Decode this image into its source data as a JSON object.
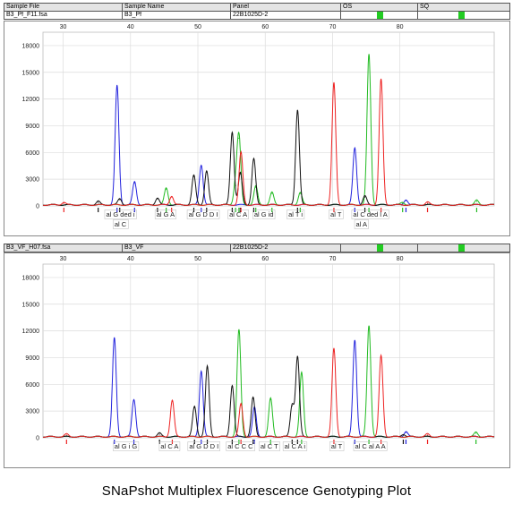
{
  "panels": [
    {
      "headers": [
        "Sample File",
        "Sample Name",
        "Panel",
        "OS",
        "SQ"
      ],
      "sample_file": "B3_Pf_F11.fsa",
      "sample_name": "B3_Pf",
      "panel": "22B1025D-2",
      "os_status": "pass",
      "sq_status": "pass",
      "allele_labels": [
        {
          "x": 38.5,
          "row": 1,
          "text": "al G ded i"
        },
        {
          "x": 38.5,
          "row": 2,
          "text": "al C"
        },
        {
          "x": 45.2,
          "row": 1,
          "text": "al G A"
        },
        {
          "x": 50.8,
          "row": 1,
          "text": "al G D D I"
        },
        {
          "x": 56.0,
          "row": 1,
          "text": "al C A"
        },
        {
          "x": 59.8,
          "row": 1,
          "text": "al G id"
        },
        {
          "x": 64.5,
          "row": 1,
          "text": "al T i"
        },
        {
          "x": 70.5,
          "row": 1,
          "text": "al T"
        },
        {
          "x": 75.6,
          "row": 1,
          "text": "al C ded l A"
        },
        {
          "x": 74.3,
          "row": 2,
          "text": "al A"
        }
      ]
    },
    {
      "headers": [
        "Sample File",
        "Sample Name",
        "Panel",
        "OS",
        "SQ"
      ],
      "sample_file": "B3_VF_H07.fsa",
      "sample_name": "B3_VF",
      "panel": "22B1025D-2",
      "os_status": "pass",
      "sq_status": "pass",
      "allele_labels": [
        {
          "x": 39.3,
          "row": 1,
          "text": "al G i G"
        },
        {
          "x": 45.8,
          "row": 1,
          "text": "al C A"
        },
        {
          "x": 50.9,
          "row": 1,
          "text": "al G D D I"
        },
        {
          "x": 56.3,
          "row": 1,
          "text": "al C C C"
        },
        {
          "x": 60.6,
          "row": 1,
          "text": "al C T"
        },
        {
          "x": 64.4,
          "row": 1,
          "text": "al C A i"
        },
        {
          "x": 70.6,
          "row": 1,
          "text": "al T"
        },
        {
          "x": 75.6,
          "row": 1,
          "text": "al C al A A"
        }
      ]
    }
  ],
  "caption": "SNaPshot Multiplex Fluorescence Genotyping Plot",
  "colors": {
    "blue": "#2222dd",
    "green": "#22bb22",
    "black": "#111111",
    "red": "#ee2222"
  },
  "chart_data": [
    {
      "type": "line",
      "xlim": [
        27,
        94
      ],
      "ylim": [
        0,
        19500
      ],
      "x_ticks": [
        30,
        40,
        50,
        60,
        70,
        80
      ],
      "y_ticks": [
        0,
        3000,
        6000,
        9000,
        12000,
        15000,
        18000
      ],
      "grid": true,
      "series": [
        {
          "color": "blue",
          "peaks": [
            [
              38.0,
              13400
            ],
            [
              40.6,
              2600
            ],
            [
              50.5,
              4500
            ],
            [
              73.3,
              6400
            ],
            [
              80.9,
              600
            ]
          ]
        },
        {
          "color": "green",
          "peaks": [
            [
              45.3,
              1900
            ],
            [
              55.6,
              2300
            ],
            [
              56.1,
              7600
            ],
            [
              58.6,
              2100
            ],
            [
              61.0,
              1400
            ],
            [
              65.2,
              1400
            ],
            [
              75.4,
              16900
            ],
            [
              80.4,
              300
            ],
            [
              91.4,
              500
            ]
          ]
        },
        {
          "color": "black",
          "peaks": [
            [
              35.2,
              400
            ],
            [
              38.4,
              700
            ],
            [
              44.0,
              800
            ],
            [
              49.4,
              3300
            ],
            [
              51.3,
              3800
            ],
            [
              55.1,
              8200
            ],
            [
              56.3,
              3600
            ],
            [
              58.3,
              5200
            ],
            [
              64.8,
              10700
            ],
            [
              74.8,
              1000
            ]
          ]
        },
        {
          "color": "red",
          "peaks": [
            [
              30.1,
              300
            ],
            [
              46.1,
              1000
            ],
            [
              56.4,
              5900
            ],
            [
              70.2,
              13700
            ],
            [
              77.2,
              14100
            ],
            [
              84.1,
              300
            ]
          ]
        }
      ]
    },
    {
      "type": "line",
      "xlim": [
        27,
        94
      ],
      "ylim": [
        0,
        19500
      ],
      "x_ticks": [
        30,
        40,
        50,
        60,
        70,
        80
      ],
      "y_ticks": [
        0,
        3000,
        6000,
        9000,
        12000,
        15000,
        18000
      ],
      "grid": true,
      "series": [
        {
          "color": "blue",
          "peaks": [
            [
              37.6,
              11100
            ],
            [
              40.5,
              4200
            ],
            [
              50.5,
              7400
            ],
            [
              58.4,
              3300
            ],
            [
              73.3,
              10900
            ],
            [
              80.9,
              600
            ]
          ]
        },
        {
          "color": "green",
          "peaks": [
            [
              56.1,
              12000
            ],
            [
              60.8,
              4300
            ],
            [
              65.4,
              7200
            ],
            [
              75.4,
              12500
            ],
            [
              91.3,
              500
            ]
          ]
        },
        {
          "color": "black",
          "peaks": [
            [
              44.3,
              400
            ],
            [
              49.5,
              3400
            ],
            [
              51.4,
              7900
            ],
            [
              55.1,
              5800
            ],
            [
              58.2,
              4400
            ],
            [
              64.0,
              3600
            ],
            [
              64.8,
              9000
            ],
            [
              80.5,
              300
            ]
          ]
        },
        {
          "color": "red",
          "peaks": [
            [
              30.5,
              300
            ],
            [
              46.2,
              4100
            ],
            [
              56.4,
              3700
            ],
            [
              70.2,
              9900
            ],
            [
              77.2,
              9100
            ],
            [
              84.1,
              300
            ]
          ]
        }
      ]
    }
  ]
}
